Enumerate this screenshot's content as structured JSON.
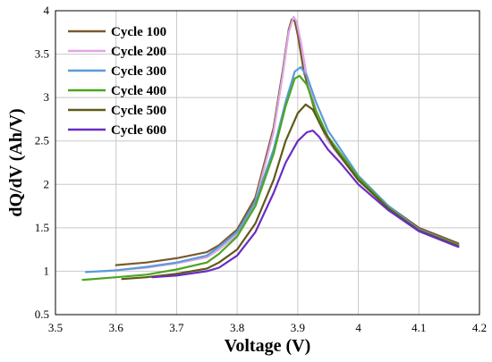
{
  "chart_data": {
    "type": "line",
    "xlabel": "Voltage (V)",
    "ylabel": "dQ/dV (Ah/V)",
    "xlim": [
      3.5,
      4.2
    ],
    "ylim": [
      0.5,
      4
    ],
    "xticks": [
      "3.5",
      "3.6",
      "3.7",
      "3.8",
      "3.9",
      "4",
      "4.1",
      "4.2"
    ],
    "yticks": [
      "0.5",
      "1",
      "1.5",
      "2",
      "2.5",
      "3",
      "3.5",
      "4"
    ],
    "grid": true,
    "legend_position": "top-left",
    "series": [
      {
        "name": "Cycle 100",
        "color": "#7b5a2e",
        "points": [
          [
            3.6,
            1.07
          ],
          [
            3.65,
            1.1
          ],
          [
            3.7,
            1.15
          ],
          [
            3.75,
            1.22
          ],
          [
            3.77,
            1.3
          ],
          [
            3.8,
            1.48
          ],
          [
            3.83,
            1.85
          ],
          [
            3.86,
            2.65
          ],
          [
            3.875,
            3.3
          ],
          [
            3.885,
            3.78
          ],
          [
            3.89,
            3.9
          ],
          [
            3.895,
            3.88
          ],
          [
            3.9,
            3.72
          ],
          [
            3.91,
            3.3
          ],
          [
            3.93,
            2.8
          ],
          [
            3.95,
            2.5
          ],
          [
            4.0,
            2.05
          ],
          [
            4.05,
            1.75
          ],
          [
            4.1,
            1.5
          ],
          [
            4.165,
            1.32
          ]
        ]
      },
      {
        "name": "Cycle 200",
        "color": "#e0a6e6",
        "points": [
          [
            3.58,
            1.0
          ],
          [
            3.65,
            1.04
          ],
          [
            3.7,
            1.09
          ],
          [
            3.75,
            1.16
          ],
          [
            3.77,
            1.25
          ],
          [
            3.8,
            1.42
          ],
          [
            3.83,
            1.8
          ],
          [
            3.86,
            2.6
          ],
          [
            3.875,
            3.25
          ],
          [
            3.885,
            3.75
          ],
          [
            3.893,
            3.93
          ],
          [
            3.898,
            3.88
          ],
          [
            3.905,
            3.65
          ],
          [
            3.915,
            3.25
          ],
          [
            3.93,
            2.85
          ],
          [
            3.95,
            2.5
          ],
          [
            4.0,
            2.05
          ],
          [
            4.05,
            1.72
          ],
          [
            4.1,
            1.48
          ],
          [
            4.165,
            1.3
          ]
        ]
      },
      {
        "name": "Cycle 300",
        "color": "#5b9bd8",
        "points": [
          [
            3.55,
            0.99
          ],
          [
            3.6,
            1.01
          ],
          [
            3.65,
            1.05
          ],
          [
            3.7,
            1.1
          ],
          [
            3.75,
            1.18
          ],
          [
            3.77,
            1.28
          ],
          [
            3.8,
            1.45
          ],
          [
            3.83,
            1.8
          ],
          [
            3.86,
            2.4
          ],
          [
            3.88,
            2.95
          ],
          [
            3.895,
            3.3
          ],
          [
            3.905,
            3.35
          ],
          [
            3.915,
            3.25
          ],
          [
            3.93,
            2.95
          ],
          [
            3.95,
            2.62
          ],
          [
            4.0,
            2.1
          ],
          [
            4.05,
            1.75
          ],
          [
            4.1,
            1.48
          ],
          [
            4.165,
            1.3
          ]
        ]
      },
      {
        "name": "Cycle 400",
        "color": "#4aa61f",
        "points": [
          [
            3.545,
            0.9
          ],
          [
            3.6,
            0.93
          ],
          [
            3.65,
            0.96
          ],
          [
            3.7,
            1.02
          ],
          [
            3.75,
            1.1
          ],
          [
            3.77,
            1.2
          ],
          [
            3.8,
            1.4
          ],
          [
            3.83,
            1.75
          ],
          [
            3.86,
            2.35
          ],
          [
            3.88,
            2.9
          ],
          [
            3.895,
            3.22
          ],
          [
            3.903,
            3.25
          ],
          [
            3.915,
            3.15
          ],
          [
            3.93,
            2.85
          ],
          [
            3.95,
            2.55
          ],
          [
            4.0,
            2.08
          ],
          [
            4.05,
            1.73
          ],
          [
            4.1,
            1.47
          ],
          [
            4.165,
            1.3
          ]
        ]
      },
      {
        "name": "Cycle 500",
        "color": "#5f5a17",
        "points": [
          [
            3.61,
            0.91
          ],
          [
            3.65,
            0.93
          ],
          [
            3.7,
            0.97
          ],
          [
            3.75,
            1.03
          ],
          [
            3.77,
            1.1
          ],
          [
            3.8,
            1.25
          ],
          [
            3.83,
            1.55
          ],
          [
            3.86,
            2.05
          ],
          [
            3.88,
            2.5
          ],
          [
            3.9,
            2.82
          ],
          [
            3.913,
            2.92
          ],
          [
            3.925,
            2.86
          ],
          [
            3.94,
            2.65
          ],
          [
            3.96,
            2.42
          ],
          [
            4.0,
            2.05
          ],
          [
            4.05,
            1.72
          ],
          [
            4.1,
            1.47
          ],
          [
            4.165,
            1.29
          ]
        ]
      },
      {
        "name": "Cycle 600",
        "color": "#6a2cc4",
        "points": [
          [
            3.66,
            0.93
          ],
          [
            3.7,
            0.95
          ],
          [
            3.75,
            1.0
          ],
          [
            3.77,
            1.04
          ],
          [
            3.8,
            1.18
          ],
          [
            3.83,
            1.45
          ],
          [
            3.86,
            1.9
          ],
          [
            3.88,
            2.25
          ],
          [
            3.9,
            2.5
          ],
          [
            3.915,
            2.6
          ],
          [
            3.925,
            2.62
          ],
          [
            3.935,
            2.55
          ],
          [
            3.95,
            2.4
          ],
          [
            3.97,
            2.25
          ],
          [
            4.0,
            2.0
          ],
          [
            4.05,
            1.7
          ],
          [
            4.1,
            1.46
          ],
          [
            4.165,
            1.28
          ]
        ]
      }
    ]
  }
}
